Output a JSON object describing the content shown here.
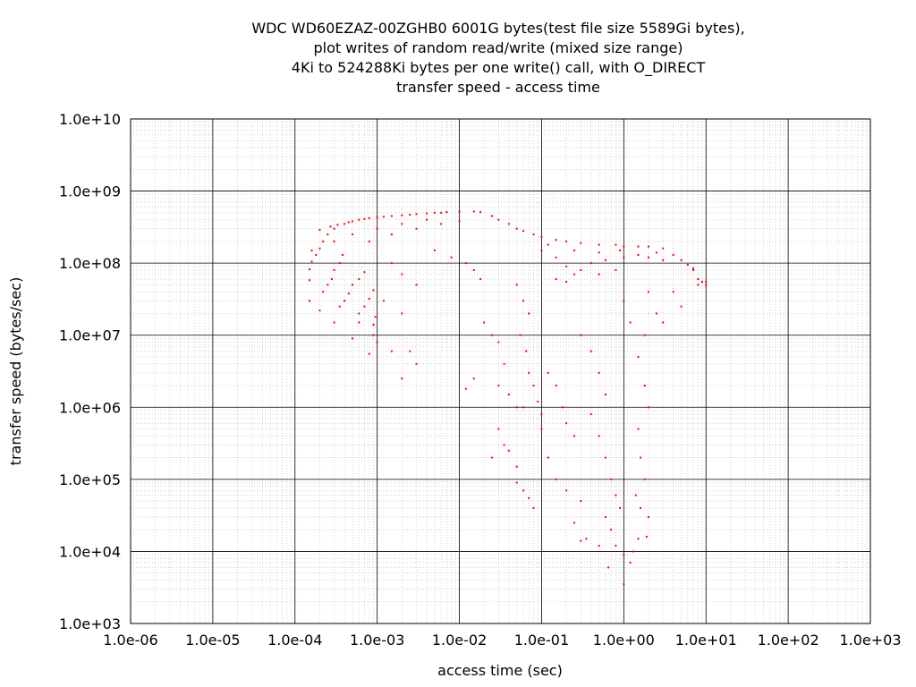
{
  "chart_data": {
    "type": "scatter",
    "title_lines": [
      "WDC WD60EZAZ-00ZGHB0 6001G bytes(test file size 5589Gi bytes),",
      "plot writes of random read/write (mixed size range)",
      "4Ki to 524288Ki bytes per one write() call, with O_DIRECT",
      "transfer speed - access time"
    ],
    "xlabel": "access time (sec)",
    "ylabel": "transfer speed (bytes/sec)",
    "x_scale": "log",
    "y_scale": "log",
    "xlim": [
      1e-06,
      1000
    ],
    "ylim": [
      1000,
      10000000000.0
    ],
    "x_ticks": [
      {
        "value": 1e-06,
        "label": "1.0e-06"
      },
      {
        "value": 1e-05,
        "label": "1.0e-05"
      },
      {
        "value": 0.0001,
        "label": "1.0e-04"
      },
      {
        "value": 0.001,
        "label": "1.0e-03"
      },
      {
        "value": 0.01,
        "label": "1.0e-02"
      },
      {
        "value": 0.1,
        "label": "1.0e-01"
      },
      {
        "value": 1,
        "label": "1.0e+00"
      },
      {
        "value": 10,
        "label": "1.0e+01"
      },
      {
        "value": 100,
        "label": "1.0e+02"
      },
      {
        "value": 1000,
        "label": "1.0e+03"
      }
    ],
    "y_ticks": [
      {
        "value": 1000,
        "label": "1.0e+03"
      },
      {
        "value": 10000,
        "label": "1.0e+04"
      },
      {
        "value": 100000,
        "label": "1.0e+05"
      },
      {
        "value": 1000000,
        "label": "1.0e+06"
      },
      {
        "value": 10000000,
        "label": "1.0e+07"
      },
      {
        "value": 100000000,
        "label": "1.0e+08"
      },
      {
        "value": 1000000000,
        "label": "1.0e+09"
      },
      {
        "value": 10000000000,
        "label": "1.0e+10"
      }
    ],
    "grid": true,
    "minor_grid": true,
    "legend": "none",
    "series": [
      {
        "color": "#ff0000",
        "marker": "dot",
        "points": [
          [
            0.00015,
            30000000.0
          ],
          [
            0.0002,
            22000000.0
          ],
          [
            0.0003,
            15000000.0
          ],
          [
            0.0005,
            9000000.0
          ],
          [
            0.0008,
            5500000.0
          ],
          [
            0.00015,
            58000000.0
          ],
          [
            0.00022,
            40000000.0
          ],
          [
            0.00035,
            25000000.0
          ],
          [
            0.0006,
            15000000.0
          ],
          [
            0.0009,
            10000000.0
          ],
          [
            0.00015,
            82000000.0
          ],
          [
            0.00025,
            50000000.0
          ],
          [
            0.0004,
            30000000.0
          ],
          [
            0.0006,
            20000000.0
          ],
          [
            0.0009,
            14000000.0
          ],
          [
            0.00016,
            105000000.0
          ],
          [
            0.00028,
            60000000.0
          ],
          [
            0.00045,
            38000000.0
          ],
          [
            0.0007,
            25000000.0
          ],
          [
            0.00095,
            18000000.0
          ],
          [
            0.00018,
            130000000.0
          ],
          [
            0.0003,
            80000000.0
          ],
          [
            0.0005,
            50000000.0
          ],
          [
            0.0008,
            32000000.0
          ],
          [
            0.0002,
            160000000.0
          ],
          [
            0.00035,
            100000000.0
          ],
          [
            0.0006,
            60000000.0
          ],
          [
            0.0009,
            42000000.0
          ],
          [
            0.00022,
            200000000.0
          ],
          [
            0.00038,
            130000000.0
          ],
          [
            0.0007,
            75000000.0
          ],
          [
            0.00016,
            150000000.0
          ],
          [
            0.00025,
            250000000.0
          ],
          [
            0.0003,
            300000000.0
          ],
          [
            0.0004,
            350000000.0
          ],
          [
            0.0005,
            380000000.0
          ],
          [
            0.0007,
            410000000.0
          ],
          [
            0.001,
            430000000.0
          ],
          [
            0.0015,
            450000000.0
          ],
          [
            0.002,
            460000000.0
          ],
          [
            0.003,
            480000000.0
          ],
          [
            0.005,
            500000000.0
          ],
          [
            0.007,
            510000000.0
          ],
          [
            0.01,
            520000000.0
          ],
          [
            0.015,
            520000000.0
          ],
          [
            0.018,
            510000000.0
          ],
          [
            0.0002,
            290000000.0
          ],
          [
            0.00027,
            320000000.0
          ],
          [
            0.00033,
            340000000.0
          ],
          [
            0.00045,
            370000000.0
          ],
          [
            0.0006,
            400000000.0
          ],
          [
            0.0008,
            420000000.0
          ],
          [
            0.0012,
            440000000.0
          ],
          [
            0.0025,
            470000000.0
          ],
          [
            0.004,
            490000000.0
          ],
          [
            0.006,
            500000000.0
          ],
          [
            0.0003,
            200000000.0
          ],
          [
            0.0005,
            250000000.0
          ],
          [
            0.001,
            300000000.0
          ],
          [
            0.002,
            350000000.0
          ],
          [
            0.004,
            400000000.0
          ],
          [
            0.0008,
            200000000.0
          ],
          [
            0.0015,
            250000000.0
          ],
          [
            0.003,
            300000000.0
          ],
          [
            0.006,
            350000000.0
          ],
          [
            0.01,
            380000000.0
          ],
          [
            0.025,
            450000000.0
          ],
          [
            0.03,
            400000000.0
          ],
          [
            0.04,
            350000000.0
          ],
          [
            0.05,
            300000000.0
          ],
          [
            0.06,
            280000000.0
          ],
          [
            0.08,
            250000000.0
          ],
          [
            0.1,
            230000000.0
          ],
          [
            0.15,
            210000000.0
          ],
          [
            0.2,
            200000000.0
          ],
          [
            0.3,
            190000000.0
          ],
          [
            0.5,
            180000000.0
          ],
          [
            0.8,
            180000000.0
          ],
          [
            1.0,
            170000000.0
          ],
          [
            1.5,
            170000000.0
          ],
          [
            2.0,
            170000000.0
          ],
          [
            3.0,
            160000000.0
          ],
          [
            4.0,
            130000000.0
          ],
          [
            5.0,
            110000000.0
          ],
          [
            6.0,
            95000000.0
          ],
          [
            7.0,
            85000000.0
          ],
          [
            0.1,
            150000000.0
          ],
          [
            0.15,
            120000000.0
          ],
          [
            0.2,
            90000000.0
          ],
          [
            0.3,
            80000000.0
          ],
          [
            0.4,
            100000000.0
          ],
          [
            0.6,
            110000000.0
          ],
          [
            1.0,
            120000000.0
          ],
          [
            1.5,
            130000000.0
          ],
          [
            2.0,
            120000000.0
          ],
          [
            3.0,
            110000000.0
          ],
          [
            0.15,
            60000000.0
          ],
          [
            0.2,
            55000000.0
          ],
          [
            0.25,
            70000000.0
          ],
          [
            0.5,
            70000000.0
          ],
          [
            0.8,
            80000000.0
          ],
          [
            0.12,
            180000000.0
          ],
          [
            0.25,
            150000000.0
          ],
          [
            0.5,
            140000000.0
          ],
          [
            0.9,
            150000000.0
          ],
          [
            2.5,
            140000000.0
          ],
          [
            8.0,
            60000000.0
          ],
          [
            10.0,
            50000000.0
          ],
          [
            9.0,
            55000000.0
          ],
          [
            0.0015,
            100000000.0
          ],
          [
            0.002,
            70000000.0
          ],
          [
            0.003,
            50000000.0
          ],
          [
            0.0012,
            30000000.0
          ],
          [
            0.002,
            20000000.0
          ],
          [
            0.001,
            8000000.0
          ],
          [
            0.0015,
            6000000.0
          ],
          [
            0.0025,
            6000000.0
          ],
          [
            0.003,
            4000000.0
          ],
          [
            0.002,
            2500000.0
          ],
          [
            0.005,
            150000000.0
          ],
          [
            0.008,
            120000000.0
          ],
          [
            0.012,
            100000000.0
          ],
          [
            0.015,
            80000000.0
          ],
          [
            0.018,
            60000000.0
          ],
          [
            0.02,
            15000000.0
          ],
          [
            0.025,
            10000000.0
          ],
          [
            0.015,
            2500000.0
          ],
          [
            0.012,
            1800000.0
          ],
          [
            0.03,
            8000000.0
          ],
          [
            0.035,
            4000000.0
          ],
          [
            0.03,
            2000000.0
          ],
          [
            0.04,
            1500000.0
          ],
          [
            0.05,
            1000000.0
          ],
          [
            0.03,
            500000.0
          ],
          [
            0.035,
            300000.0
          ],
          [
            0.025,
            200000.0
          ],
          [
            0.04,
            250000.0
          ],
          [
            0.05,
            150000.0
          ],
          [
            0.05,
            90000.0
          ],
          [
            0.06,
            70000.0
          ],
          [
            0.07,
            55000.0
          ],
          [
            0.08,
            40000.0
          ],
          [
            0.05,
            50000000.0
          ],
          [
            0.06,
            30000000.0
          ],
          [
            0.07,
            20000000.0
          ],
          [
            0.055,
            10000000.0
          ],
          [
            0.065,
            6000000.0
          ],
          [
            0.07,
            3000000.0
          ],
          [
            0.08,
            2000000.0
          ],
          [
            0.09,
            1200000.0
          ],
          [
            0.1,
            800000.0
          ],
          [
            0.06,
            1000000.0
          ],
          [
            0.12,
            3000000.0
          ],
          [
            0.15,
            2000000.0
          ],
          [
            0.18,
            1000000.0
          ],
          [
            0.2,
            600000.0
          ],
          [
            0.25,
            400000.0
          ],
          [
            0.1,
            500000.0
          ],
          [
            0.12,
            200000.0
          ],
          [
            0.15,
            100000.0
          ],
          [
            0.2,
            70000.0
          ],
          [
            0.3,
            50000.0
          ],
          [
            0.25,
            25000.0
          ],
          [
            0.3,
            14000.0
          ],
          [
            0.35,
            15000.0
          ],
          [
            0.3,
            10000000.0
          ],
          [
            0.4,
            6000000.0
          ],
          [
            0.5,
            3000000.0
          ],
          [
            0.6,
            1500000.0
          ],
          [
            0.4,
            800000.0
          ],
          [
            0.5,
            400000.0
          ],
          [
            0.6,
            200000.0
          ],
          [
            0.7,
            100000.0
          ],
          [
            0.8,
            60000.0
          ],
          [
            0.6,
            30000.0
          ],
          [
            0.7,
            20000.0
          ],
          [
            0.5,
            12000.0
          ],
          [
            0.65,
            6000.0
          ],
          [
            0.8,
            12000.0
          ],
          [
            0.9,
            40000.0
          ],
          [
            1.0,
            3500.0
          ],
          [
            1.0,
            9000.0
          ],
          [
            1.2,
            7000.0
          ],
          [
            1.3,
            10000.0
          ],
          [
            1.5,
            15000.0
          ],
          [
            1.0,
            30000000.0
          ],
          [
            1.2,
            15000000.0
          ],
          [
            1.5,
            5000000.0
          ],
          [
            1.8,
            2000000.0
          ],
          [
            2.0,
            1000000.0
          ],
          [
            1.5,
            500000.0
          ],
          [
            1.6,
            200000.0
          ],
          [
            1.8,
            100000.0
          ],
          [
            1.4,
            60000.0
          ],
          [
            1.6,
            40000.0
          ],
          [
            2.0,
            30000.0
          ],
          [
            1.9,
            16000.0
          ],
          [
            2.0,
            40000000.0
          ],
          [
            2.5,
            20000000.0
          ],
          [
            3.0,
            15000000.0
          ],
          [
            1.8,
            10000000.0
          ],
          [
            4.0,
            40000000.0
          ],
          [
            5.0,
            25000000.0
          ],
          [
            7.0,
            80000000.0
          ],
          [
            8.0,
            50000000.0
          ],
          [
            10.0,
            55000000.0
          ]
        ]
      }
    ]
  }
}
